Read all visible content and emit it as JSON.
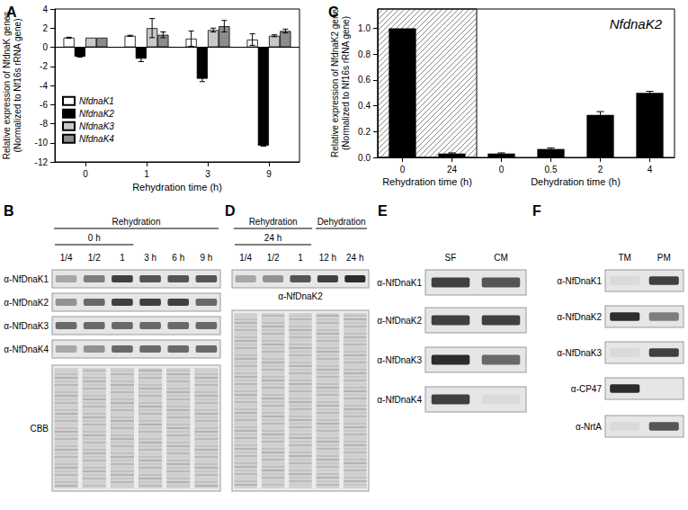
{
  "chart_data": [
    {
      "panel": "A",
      "type": "bar",
      "xlabel": "Rehydration time (h)",
      "ylabel": "Relative expression of NfdnaK genes\n(Normalized to Nf16s rRNA gene)",
      "categories": [
        "0",
        "1",
        "3",
        "9"
      ],
      "series": [
        {
          "name": "NfdnaK1",
          "color": "#ffffff",
          "values": [
            1.0,
            1.2,
            0.9,
            0.8
          ],
          "errors": [
            0.05,
            0.05,
            0.8,
            0.6
          ]
        },
        {
          "name": "NfdnaK2",
          "color": "#000000",
          "values": [
            -1.0,
            -1.2,
            -3.3,
            -10.3
          ],
          "errors": [
            0.05,
            0.3,
            0.3,
            0.05
          ]
        },
        {
          "name": "NfdnaK3",
          "color": "#c8c8c8",
          "values": [
            1.0,
            2.0,
            1.8,
            1.2
          ],
          "errors": [
            0,
            1.0,
            0.2,
            0.1
          ]
        },
        {
          "name": "NfdnaK4",
          "color": "#8c8c8c",
          "values": [
            1.0,
            1.3,
            2.2,
            1.7
          ],
          "errors": [
            0,
            0.3,
            0.6,
            0.2
          ]
        }
      ],
      "ylim": [
        -12,
        4
      ],
      "yticks": [
        -12,
        -10,
        -8,
        -6,
        -4,
        -2,
        0,
        2,
        4
      ],
      "legend": "lower left",
      "grid": false
    },
    {
      "panel": "C",
      "type": "bar",
      "annotation": "NfdnaK2",
      "ylabel": "Relative expression of NfdnaK2 gene\n(Normalized to Nf16s rRNA gene)",
      "groups": [
        {
          "label": "Rehydration time (h)",
          "categories": [
            "0",
            "24"
          ],
          "values": [
            1.0,
            0.03
          ],
          "errors": [
            0,
            0.005
          ]
        },
        {
          "label": "Dehydration time (h)",
          "categories": [
            "0",
            "0.5",
            "2",
            "4"
          ],
          "values": [
            0.03,
            0.065,
            0.33,
            0.5
          ],
          "errors": [
            0.005,
            0.008,
            0.025,
            0.012
          ]
        }
      ],
      "color": "#000000",
      "ylim": [
        0,
        1.15
      ],
      "yticks": [
        {
          "value": 0,
          "label": "0.0"
        },
        {
          "value": 0.2,
          "label": "0.2"
        },
        {
          "value": 0.4,
          "label": "0.4"
        },
        {
          "value": 0.6,
          "label": "0.6"
        },
        {
          "value": 0.8,
          "label": "0.8"
        },
        {
          "value": 1,
          "label": "1.0"
        }
      ],
      "grid": false
    }
  ],
  "blots": [
    {
      "panel": "B",
      "lane_groups": [
        {
          "label": "Rehydration",
          "groups": [
            {
              "label": "0 h",
              "lanes": [
                "1/4",
                "1/2",
                "1"
              ]
            },
            {
              "lanes": [
                "3 h",
                "6 h",
                "9 h"
              ]
            }
          ]
        }
      ],
      "rows": [
        {
          "label": "α-NfDnaK1",
          "bands": [
            0.3,
            0.5,
            0.8,
            0.7,
            0.7,
            0.7
          ]
        },
        {
          "label": "α-NfDnaK2",
          "bands": [
            0.4,
            0.6,
            0.8,
            0.8,
            0.8,
            0.6
          ]
        },
        {
          "label": "α-NfDnaK3",
          "bands": [
            0.6,
            0.6,
            0.6,
            0.6,
            0.6,
            0.6
          ]
        },
        {
          "label": "α-NfDnaK4",
          "bands": [
            0.3,
            0.4,
            0.6,
            0.6,
            0.6,
            0.6
          ]
        }
      ],
      "stain": "CBB"
    },
    {
      "panel": "D",
      "lane_groups": [
        {
          "label": "Rehydration",
          "groups": [
            {
              "label": "24 h",
              "lanes": [
                "1/4",
                "1/2",
                "1"
              ]
            }
          ]
        },
        {
          "label": "Dehydration",
          "groups": [
            {
              "lanes": [
                "12 h",
                "24 h"
              ]
            }
          ]
        }
      ],
      "rows": [
        {
          "label": "α-NfDnaK2",
          "bands": [
            0.3,
            0.4,
            0.7,
            0.8,
            0.9
          ]
        }
      ],
      "stain": true
    },
    {
      "panel": "E",
      "lane_groups": [
        {
          "groups": [
            {
              "lanes": [
                "SF",
                "CM"
              ]
            }
          ]
        }
      ],
      "rows": [
        {
          "label": "α-NfDnaK1",
          "bands": [
            0.8,
            0.7
          ]
        },
        {
          "label": "α-NfDnaK2",
          "bands": [
            0.8,
            0.8
          ]
        },
        {
          "label": "α-NfDnaK3",
          "bands": [
            0.9,
            0.6
          ]
        },
        {
          "label": "α-NfDnaK4",
          "bands": [
            0.8,
            0.05
          ]
        }
      ]
    },
    {
      "panel": "F",
      "lane_groups": [
        {
          "groups": [
            {
              "lanes": [
                "TM",
                "PM"
              ]
            }
          ]
        }
      ],
      "rows": [
        {
          "label": "α-NfDnaK1",
          "bands": [
            0.05,
            0.8
          ]
        },
        {
          "label": "α-NfDnaK2",
          "bands": [
            0.9,
            0.5
          ]
        },
        {
          "label": "α-NfDnaK3",
          "bands": [
            0.05,
            0.8
          ]
        },
        {
          "label": "α-CP47",
          "bands": [
            0.9,
            0
          ]
        },
        {
          "label": "α-NrtA",
          "bands": [
            0.05,
            0.7
          ]
        }
      ]
    }
  ]
}
